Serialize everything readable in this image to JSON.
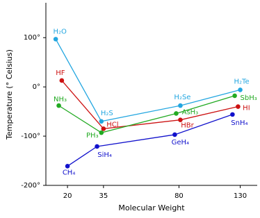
{
  "chart_data": {
    "type": "line",
    "y_label": "Temperature (° Celsius)",
    "x_label": "Molecular Weight",
    "xscale": "sqrt",
    "xlim": [
      13,
      146
    ],
    "xticks": [
      20,
      35,
      80,
      130
    ],
    "ylim": [
      -200,
      170
    ],
    "yticks": [
      {
        "value": 100,
        "label": "100°"
      },
      {
        "value": 0,
        "label": "0°"
      },
      {
        "value": -100,
        "label": "-100°"
      },
      {
        "value": -200,
        "label": "-200°"
      }
    ],
    "grid": false,
    "series": [
      {
        "color": "#22a6e0",
        "x": [
          16,
          34,
          81,
          130
        ],
        "values": [
          97,
          -70,
          -38,
          -6
        ],
        "labels": [
          "H₂O",
          "H₂S",
          "H₂Se",
          "H₂Te"
        ]
      },
      {
        "color": "#cc1111",
        "x": [
          18,
          35,
          81,
          128
        ],
        "values": [
          13,
          -85,
          -67,
          -40
        ],
        "labels": [
          "HF",
          "HCl",
          "HBr",
          "HI"
        ]
      },
      {
        "color": "#22aa22",
        "x": [
          17,
          34,
          78,
          125
        ],
        "values": [
          -38,
          -93,
          -54,
          -18
        ],
        "labels": [
          "NH₃",
          "PH₃",
          "AsH₃",
          "SbH₃"
        ]
      },
      {
        "color": "#1111cc",
        "x": [
          20,
          32,
          77,
          123
        ],
        "values": [
          -161,
          -121,
          -97,
          -56
        ],
        "labels": [
          "CH₄",
          "SiH₄",
          "GeH₄",
          "SnH₄"
        ]
      }
    ]
  }
}
